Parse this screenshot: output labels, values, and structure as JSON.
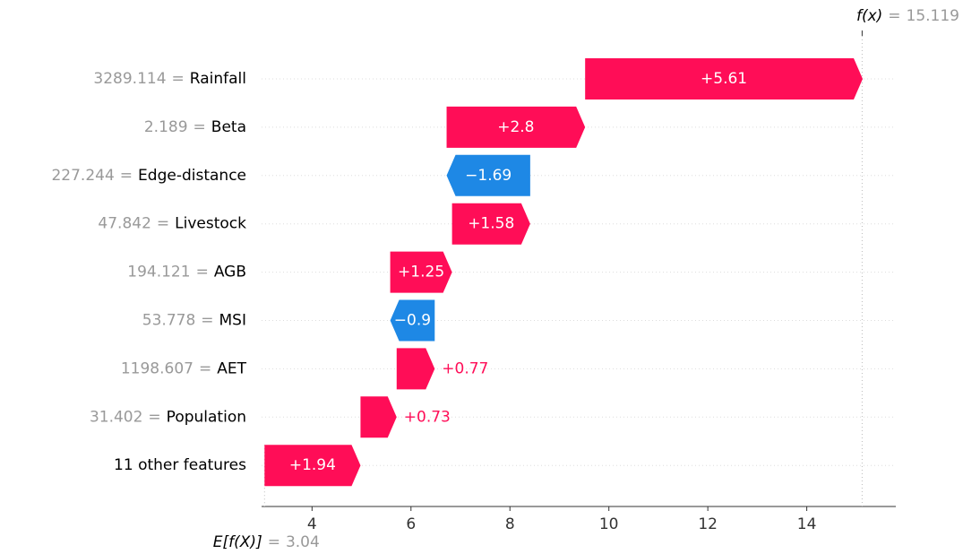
{
  "chart_data": {
    "type": "waterfall",
    "features": [
      {
        "value": "3289.114",
        "name": "Rainfall"
      },
      {
        "value": "2.189",
        "name": "Beta"
      },
      {
        "value": "227.244",
        "name": "Edge-distance"
      },
      {
        "value": "47.842",
        "name": "Livestock"
      },
      {
        "value": "194.121",
        "name": "AGB"
      },
      {
        "value": "53.778",
        "name": "MSI"
      },
      {
        "value": "1198.607",
        "name": "AET"
      },
      {
        "value": "31.402",
        "name": "Population"
      },
      {
        "value": null,
        "name": "11 other features"
      }
    ],
    "separator": "=",
    "values": [
      5.61,
      2.8,
      -1.69,
      1.58,
      1.25,
      -0.9,
      0.77,
      0.73,
      1.94
    ],
    "value_labels": [
      "+5.61",
      "+2.8",
      "−1.69",
      "+1.58",
      "+1.25",
      "−0.9",
      "+0.77",
      "+0.73",
      "+1.94"
    ],
    "base_label": "E[f(X)]",
    "base_value": 3.04,
    "output_label": "f(x)",
    "output_value": 15.119,
    "positive_color": "#ff0d57",
    "negative_color": "#1e88e5",
    "xlim": [
      2.98,
      15.8
    ],
    "xticks": [
      4,
      6,
      8,
      10,
      12,
      14
    ]
  }
}
